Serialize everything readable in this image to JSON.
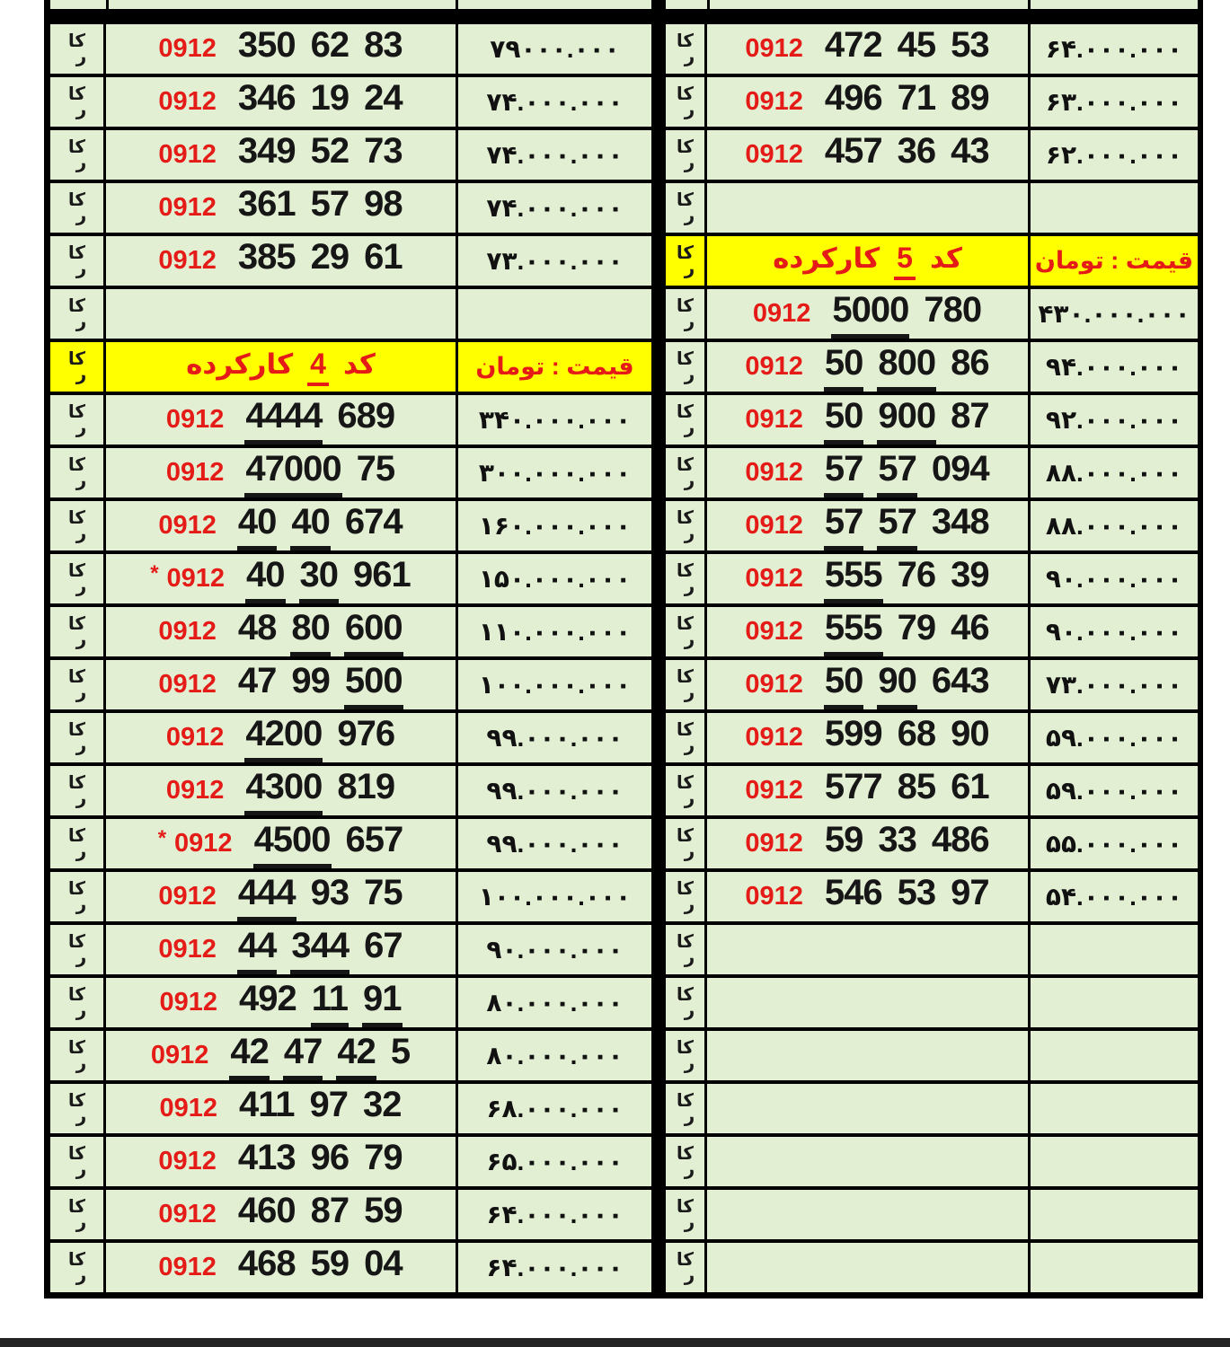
{
  "colors": {
    "cell_green": "#e2efd3",
    "header_yellow": "#ffff00",
    "accent_red": "#e41b17",
    "border_black": "#000000",
    "text_black": "#161616",
    "bottom_bar": "#242424",
    "page_bg": "#ffffff"
  },
  "badge": {
    "line1": "کا",
    "line2": "ر"
  },
  "tables": {
    "left": {
      "rows": [
        {
          "type": "number",
          "star": false,
          "prefix": "0912",
          "segments": [
            {
              "text": "350",
              "underline": false
            },
            {
              "text": "62",
              "underline": false
            },
            {
              "text": "83",
              "underline": false
            }
          ],
          "price": "۷۹۰۰۰.۰۰۰"
        },
        {
          "type": "number",
          "star": false,
          "prefix": "0912",
          "segments": [
            {
              "text": "346",
              "underline": false
            },
            {
              "text": "19",
              "underline": false
            },
            {
              "text": "24",
              "underline": false
            }
          ],
          "price": "۷۴.۰۰۰.۰۰۰"
        },
        {
          "type": "number",
          "star": false,
          "prefix": "0912",
          "segments": [
            {
              "text": "349",
              "underline": false
            },
            {
              "text": "52",
              "underline": false
            },
            {
              "text": "73",
              "underline": false
            }
          ],
          "price": "۷۴.۰۰۰.۰۰۰"
        },
        {
          "type": "number",
          "star": false,
          "prefix": "0912",
          "segments": [
            {
              "text": "361",
              "underline": false
            },
            {
              "text": "57",
              "underline": false
            },
            {
              "text": "98",
              "underline": false
            }
          ],
          "price": "۷۴.۰۰۰.۰۰۰"
        },
        {
          "type": "number",
          "star": false,
          "prefix": "0912",
          "segments": [
            {
              "text": "385",
              "underline": false
            },
            {
              "text": "29",
              "underline": false
            },
            {
              "text": "61",
              "underline": false
            }
          ],
          "price": "۷۳.۰۰۰.۰۰۰"
        },
        {
          "type": "empty"
        },
        {
          "type": "header",
          "code_label": "کد",
          "code_digit": "4",
          "used_label": "کارکرده",
          "price_label": "قیمت : تومان"
        },
        {
          "type": "number",
          "star": false,
          "prefix": "0912",
          "segments": [
            {
              "text": "4444",
              "underline": true
            },
            {
              "text": "689",
              "underline": false
            }
          ],
          "price": "۳۴۰.۰۰۰.۰۰۰"
        },
        {
          "type": "number",
          "star": false,
          "prefix": "0912",
          "segments": [
            {
              "text": "47000",
              "underline": true
            },
            {
              "text": "75",
              "underline": false
            }
          ],
          "price": "۳۰۰.۰۰۰.۰۰۰"
        },
        {
          "type": "number",
          "star": false,
          "prefix": "0912",
          "segments": [
            {
              "text": "40",
              "underline": true
            },
            {
              "text": "40",
              "underline": true
            },
            {
              "text": "674",
              "underline": false
            }
          ],
          "price": "۱۶۰.۰۰۰.۰۰۰"
        },
        {
          "type": "number",
          "star": true,
          "prefix": "0912",
          "segments": [
            {
              "text": "40",
              "underline": true
            },
            {
              "text": "30",
              "underline": true
            },
            {
              "text": "961",
              "underline": false
            }
          ],
          "price": "۱۵۰.۰۰۰.۰۰۰"
        },
        {
          "type": "number",
          "star": false,
          "prefix": "0912",
          "segments": [
            {
              "text": "48",
              "underline": false
            },
            {
              "text": "80",
              "underline": true
            },
            {
              "text": "600",
              "underline": true
            }
          ],
          "price": "۱۱۰.۰۰۰.۰۰۰"
        },
        {
          "type": "number",
          "star": false,
          "prefix": "0912",
          "segments": [
            {
              "text": "47",
              "underline": false
            },
            {
              "text": "99",
              "underline": false
            },
            {
              "text": "500",
              "underline": true
            }
          ],
          "price": "۱۰۰.۰۰۰.۰۰۰"
        },
        {
          "type": "number",
          "star": false,
          "prefix": "0912",
          "segments": [
            {
              "text": "4200",
              "underline": true
            },
            {
              "text": "976",
              "underline": false
            }
          ],
          "price": "۹۹.۰۰۰.۰۰۰"
        },
        {
          "type": "number",
          "star": false,
          "prefix": "0912",
          "segments": [
            {
              "text": "4300",
              "underline": true
            },
            {
              "text": "819",
              "underline": false
            }
          ],
          "price": "۹۹.۰۰۰.۰۰۰"
        },
        {
          "type": "number",
          "star": true,
          "prefix": "0912",
          "segments": [
            {
              "text": "4500",
              "underline": true
            },
            {
              "text": "657",
              "underline": false
            }
          ],
          "price": "۹۹.۰۰۰.۰۰۰"
        },
        {
          "type": "number",
          "star": false,
          "prefix": "0912",
          "segments": [
            {
              "text": "444",
              "underline": true
            },
            {
              "text": "93",
              "underline": false
            },
            {
              "text": "75",
              "underline": false
            }
          ],
          "price": "۱۰۰.۰۰۰.۰۰۰"
        },
        {
          "type": "number",
          "star": false,
          "prefix": "0912",
          "segments": [
            {
              "text": "44",
              "underline": true
            },
            {
              "text": "344",
              "underline": true
            },
            {
              "text": "67",
              "underline": false
            }
          ],
          "price": "۹۰.۰۰۰.۰۰۰"
        },
        {
          "type": "number",
          "star": false,
          "prefix": "0912",
          "segments": [
            {
              "text": "492",
              "underline": false
            },
            {
              "text": "11",
              "underline": true
            },
            {
              "text": "91",
              "underline": true
            }
          ],
          "price": "۸۰.۰۰۰.۰۰۰"
        },
        {
          "type": "number",
          "star": false,
          "prefix": "0912",
          "segments": [
            {
              "text": "42",
              "underline": true
            },
            {
              "text": "47",
              "underline": true
            },
            {
              "text": "42",
              "underline": true
            },
            {
              "text": "5",
              "underline": false
            }
          ],
          "price": "۸۰.۰۰۰.۰۰۰"
        },
        {
          "type": "number",
          "star": false,
          "prefix": "0912",
          "segments": [
            {
              "text": "411",
              "underline": false
            },
            {
              "text": "97",
              "underline": false
            },
            {
              "text": "32",
              "underline": false
            }
          ],
          "price": "۶۸.۰۰۰.۰۰۰"
        },
        {
          "type": "number",
          "star": false,
          "prefix": "0912",
          "segments": [
            {
              "text": "413",
              "underline": false
            },
            {
              "text": "96",
              "underline": false
            },
            {
              "text": "79",
              "underline": false
            }
          ],
          "price": "۶۵.۰۰۰.۰۰۰"
        },
        {
          "type": "number",
          "star": false,
          "prefix": "0912",
          "segments": [
            {
              "text": "460",
              "underline": false
            },
            {
              "text": "87",
              "underline": false
            },
            {
              "text": "59",
              "underline": false
            }
          ],
          "price": "۶۴.۰۰۰.۰۰۰"
        },
        {
          "type": "number",
          "star": false,
          "prefix": "0912",
          "segments": [
            {
              "text": "468",
              "underline": false
            },
            {
              "text": "59",
              "underline": false
            },
            {
              "text": "04",
              "underline": false
            }
          ],
          "price": "۶۴.۰۰۰.۰۰۰"
        }
      ]
    },
    "right": {
      "rows": [
        {
          "type": "number",
          "star": false,
          "prefix": "0912",
          "segments": [
            {
              "text": "472",
              "underline": false
            },
            {
              "text": "45",
              "underline": false
            },
            {
              "text": "53",
              "underline": false
            }
          ],
          "price": "۶۴.۰۰۰.۰۰۰"
        },
        {
          "type": "number",
          "star": false,
          "prefix": "0912",
          "segments": [
            {
              "text": "496",
              "underline": false
            },
            {
              "text": "71",
              "underline": false
            },
            {
              "text": "89",
              "underline": false
            }
          ],
          "price": "۶۳.۰۰۰.۰۰۰"
        },
        {
          "type": "number",
          "star": false,
          "prefix": "0912",
          "segments": [
            {
              "text": "457",
              "underline": false
            },
            {
              "text": "36",
              "underline": false
            },
            {
              "text": "43",
              "underline": false
            }
          ],
          "price": "۶۲.۰۰۰.۰۰۰"
        },
        {
          "type": "empty"
        },
        {
          "type": "header",
          "code_label": "کد",
          "code_digit": "5",
          "used_label": "کارکرده",
          "price_label": "قیمت : تومان"
        },
        {
          "type": "number",
          "star": false,
          "prefix": "0912",
          "segments": [
            {
              "text": "5000",
              "underline": true
            },
            {
              "text": "780",
              "underline": false
            }
          ],
          "price": "۴۳۰.۰۰۰.۰۰۰"
        },
        {
          "type": "number",
          "star": false,
          "prefix": "0912",
          "segments": [
            {
              "text": "50",
              "underline": true
            },
            {
              "text": "800",
              "underline": true
            },
            {
              "text": "86",
              "underline": false
            }
          ],
          "price": "۹۴.۰۰۰.۰۰۰"
        },
        {
          "type": "number",
          "star": false,
          "prefix": "0912",
          "segments": [
            {
              "text": "50",
              "underline": true
            },
            {
              "text": "900",
              "underline": true
            },
            {
              "text": "87",
              "underline": false
            }
          ],
          "price": "۹۲.۰۰۰.۰۰۰"
        },
        {
          "type": "number",
          "star": false,
          "prefix": "0912",
          "segments": [
            {
              "text": "57",
              "underline": true
            },
            {
              "text": "57",
              "underline": true
            },
            {
              "text": "094",
              "underline": false
            }
          ],
          "price": "۸۸.۰۰۰.۰۰۰"
        },
        {
          "type": "number",
          "star": false,
          "prefix": "0912",
          "segments": [
            {
              "text": "57",
              "underline": true
            },
            {
              "text": "57",
              "underline": true
            },
            {
              "text": "348",
              "underline": false
            }
          ],
          "price": "۸۸.۰۰۰.۰۰۰"
        },
        {
          "type": "number",
          "star": false,
          "prefix": "0912",
          "segments": [
            {
              "text": "555",
              "underline": true
            },
            {
              "text": "76",
              "underline": false
            },
            {
              "text": "39",
              "underline": false
            }
          ],
          "price": "۹۰.۰۰۰.۰۰۰"
        },
        {
          "type": "number",
          "star": false,
          "prefix": "0912",
          "segments": [
            {
              "text": "555",
              "underline": true
            },
            {
              "text": "79",
              "underline": false
            },
            {
              "text": "46",
              "underline": false
            }
          ],
          "price": "۹۰.۰۰۰.۰۰۰"
        },
        {
          "type": "number",
          "star": false,
          "prefix": "0912",
          "segments": [
            {
              "text": "50",
              "underline": true
            },
            {
              "text": "90",
              "underline": true
            },
            {
              "text": "643",
              "underline": false
            }
          ],
          "price": "۷۳.۰۰۰.۰۰۰"
        },
        {
          "type": "number",
          "star": false,
          "prefix": "0912",
          "segments": [
            {
              "text": "599",
              "underline": false
            },
            {
              "text": "68",
              "underline": false
            },
            {
              "text": "90",
              "underline": false
            }
          ],
          "price": "۵۹.۰۰۰.۰۰۰"
        },
        {
          "type": "number",
          "star": false,
          "prefix": "0912",
          "segments": [
            {
              "text": "577",
              "underline": false
            },
            {
              "text": "85",
              "underline": false
            },
            {
              "text": "61",
              "underline": false
            }
          ],
          "price": "۵۹.۰۰۰.۰۰۰"
        },
        {
          "type": "number",
          "star": false,
          "prefix": "0912",
          "segments": [
            {
              "text": "59",
              "underline": false
            },
            {
              "text": "33",
              "underline": false
            },
            {
              "text": "486",
              "underline": false
            }
          ],
          "price": "۵۵.۰۰۰.۰۰۰"
        },
        {
          "type": "number",
          "star": false,
          "prefix": "0912",
          "segments": [
            {
              "text": "546",
              "underline": false
            },
            {
              "text": "53",
              "underline": false
            },
            {
              "text": "97",
              "underline": false
            }
          ],
          "price": "۵۴.۰۰۰.۰۰۰"
        },
        {
          "type": "empty"
        },
        {
          "type": "empty"
        },
        {
          "type": "empty"
        },
        {
          "type": "empty"
        },
        {
          "type": "empty"
        },
        {
          "type": "empty"
        },
        {
          "type": "empty"
        }
      ]
    }
  }
}
